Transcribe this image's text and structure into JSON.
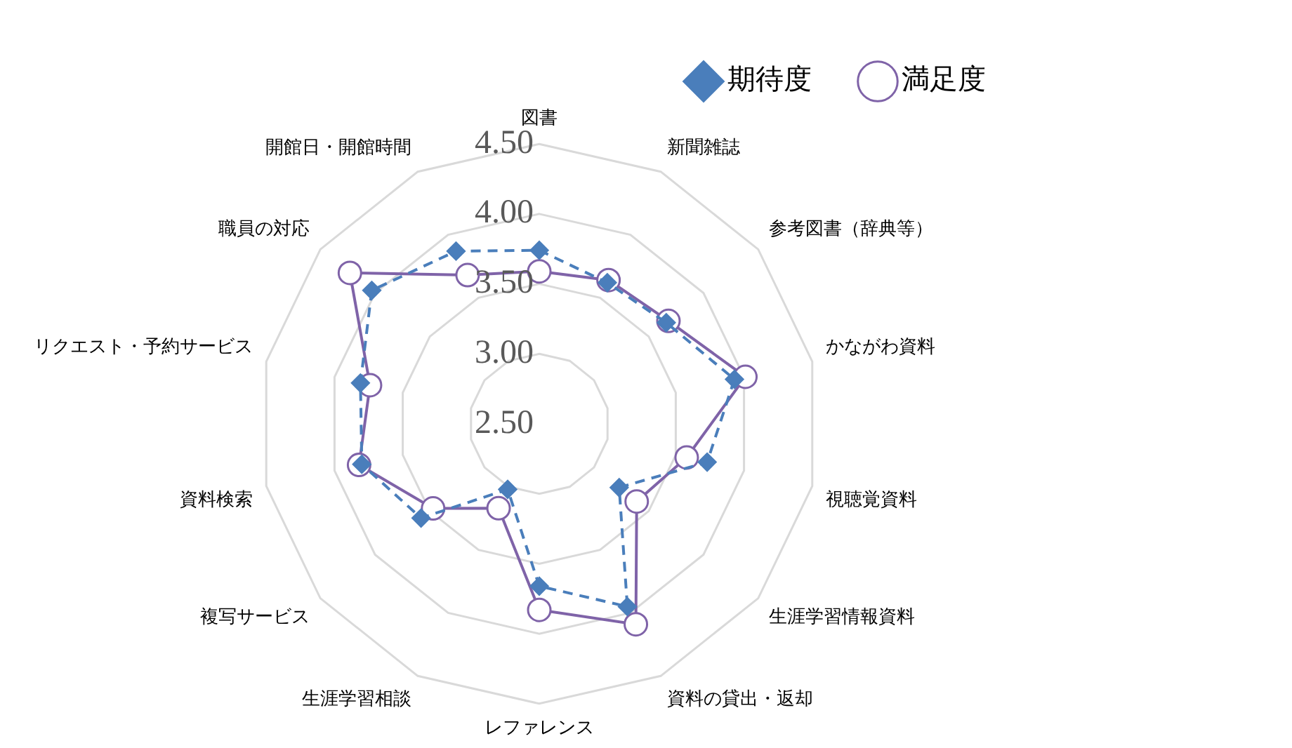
{
  "chart_data": {
    "type": "radar",
    "categories": [
      "図書",
      "新聞雑誌",
      "参考図書（辞典等）",
      "かながわ資料",
      "視聴覚資料",
      "生涯学習情報資料",
      "資料の貸出・返却",
      "レファレンス",
      "生涯学習相談",
      "複写サービス",
      "資料検索",
      "リクエスト・予約サービス",
      "職員の対応",
      "開館日・開館時間"
    ],
    "series": [
      {
        "name": "期待度",
        "color": "#4a7ebb",
        "marker": "diamond",
        "line_style": "dashed",
        "values": [
          3.74,
          3.62,
          3.66,
          3.93,
          3.73,
          3.23,
          3.95,
          3.66,
          3.02,
          3.58,
          3.8,
          3.81,
          4.03,
          3.87
        ]
      },
      {
        "name": "満足度",
        "color": "#7f63a8",
        "marker": "circle",
        "line_style": "solid",
        "values": [
          3.59,
          3.64,
          3.68,
          4.01,
          3.58,
          3.39,
          4.09,
          3.83,
          3.17,
          3.47,
          3.82,
          3.74,
          4.23,
          3.68
        ]
      }
    ],
    "ylim": [
      2.5,
      4.5
    ],
    "yticks": [
      {
        "value": 2.5,
        "label": "2.50"
      },
      {
        "value": 3,
        "label": "3.00"
      },
      {
        "value": 3.5,
        "label": "3.50"
      },
      {
        "value": 4,
        "label": "4.00"
      },
      {
        "value": 4.5,
        "label": "4.50"
      }
    ],
    "grid": true,
    "legend": "top right"
  }
}
